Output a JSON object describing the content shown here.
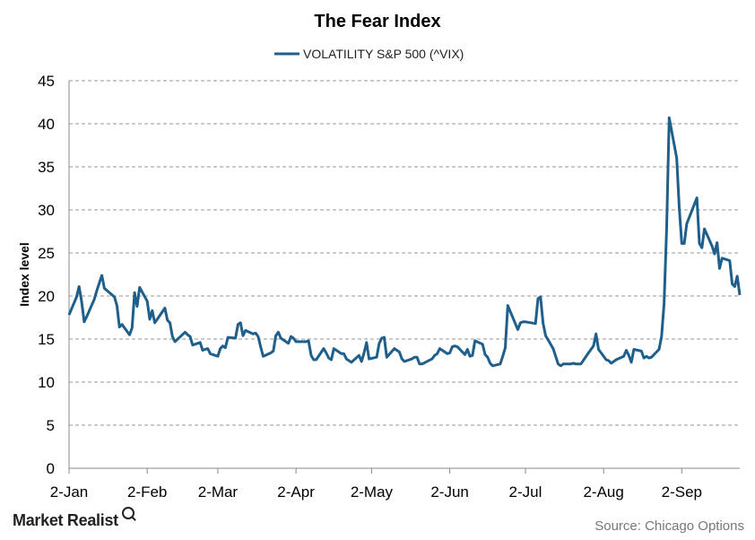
{
  "chart_data": {
    "type": "line",
    "title": "The Fear  Index",
    "ylabel": "Index level",
    "xlabel": "",
    "ylim": [
      0,
      45
    ],
    "yticks": [
      0,
      5,
      10,
      15,
      20,
      25,
      30,
      35,
      40,
      45
    ],
    "xticks": [
      "2-Jan",
      "2-Feb",
      "2-Mar",
      "2-Apr",
      "2-May",
      "2-Jun",
      "2-Jul",
      "2-Aug",
      "2-Sep"
    ],
    "grid": true,
    "legend": "top-center",
    "series": [
      {
        "name": "VOLATILITY S&P 500 (^VIX)",
        "color": "#1f5f8b",
        "x": [
          "2015-01-02",
          "2015-01-05",
          "2015-01-06",
          "2015-01-07",
          "2015-01-08",
          "2015-01-09",
          "2015-01-12",
          "2015-01-13",
          "2015-01-14",
          "2015-01-15",
          "2015-01-16",
          "2015-01-20",
          "2015-01-21",
          "2015-01-22",
          "2015-01-23",
          "2015-01-26",
          "2015-01-27",
          "2015-01-28",
          "2015-01-29",
          "2015-01-30",
          "2015-02-02",
          "2015-02-03",
          "2015-02-04",
          "2015-02-05",
          "2015-02-06",
          "2015-02-09",
          "2015-02-10",
          "2015-02-11",
          "2015-02-12",
          "2015-02-13",
          "2015-02-17",
          "2015-02-18",
          "2015-02-19",
          "2015-02-20",
          "2015-02-23",
          "2015-02-24",
          "2015-02-25",
          "2015-02-26",
          "2015-02-27",
          "2015-03-02",
          "2015-03-03",
          "2015-03-04",
          "2015-03-05",
          "2015-03-06",
          "2015-03-09",
          "2015-03-10",
          "2015-03-11",
          "2015-03-12",
          "2015-03-13",
          "2015-03-16",
          "2015-03-17",
          "2015-03-18",
          "2015-03-19",
          "2015-03-20",
          "2015-03-23",
          "2015-03-24",
          "2015-03-25",
          "2015-03-26",
          "2015-03-27",
          "2015-03-30",
          "2015-03-31",
          "2015-04-01",
          "2015-04-02",
          "2015-04-06",
          "2015-04-07",
          "2015-04-08",
          "2015-04-09",
          "2015-04-10",
          "2015-04-13",
          "2015-04-14",
          "2015-04-15",
          "2015-04-16",
          "2015-04-17",
          "2015-04-20",
          "2015-04-21",
          "2015-04-22",
          "2015-04-23",
          "2015-04-24",
          "2015-04-27",
          "2015-04-28",
          "2015-04-29",
          "2015-04-30",
          "2015-05-01",
          "2015-05-04",
          "2015-05-05",
          "2015-05-06",
          "2015-05-07",
          "2015-05-08",
          "2015-05-11",
          "2015-05-12",
          "2015-05-13",
          "2015-05-14",
          "2015-05-15",
          "2015-05-18",
          "2015-05-19",
          "2015-05-20",
          "2015-05-21",
          "2015-05-22",
          "2015-05-26",
          "2015-05-27",
          "2015-05-28",
          "2015-05-29",
          "2015-06-01",
          "2015-06-02",
          "2015-06-03",
          "2015-06-04",
          "2015-06-05",
          "2015-06-08",
          "2015-06-09",
          "2015-06-10",
          "2015-06-11",
          "2015-06-12",
          "2015-06-15",
          "2015-06-16",
          "2015-06-17",
          "2015-06-18",
          "2015-06-19",
          "2015-06-22",
          "2015-06-23",
          "2015-06-24",
          "2015-06-25",
          "2015-06-26",
          "2015-06-29",
          "2015-06-30",
          "2015-07-01",
          "2015-07-02",
          "2015-07-06",
          "2015-07-07",
          "2015-07-08",
          "2015-07-09",
          "2015-07-10",
          "2015-07-13",
          "2015-07-14",
          "2015-07-15",
          "2015-07-16",
          "2015-07-17",
          "2015-07-20",
          "2015-07-21",
          "2015-07-22",
          "2015-07-23",
          "2015-07-24",
          "2015-07-27",
          "2015-07-28",
          "2015-07-29",
          "2015-07-30",
          "2015-07-31",
          "2015-08-03",
          "2015-08-04",
          "2015-08-05",
          "2015-08-06",
          "2015-08-07",
          "2015-08-10",
          "2015-08-11",
          "2015-08-12",
          "2015-08-13",
          "2015-08-14",
          "2015-08-17",
          "2015-08-18",
          "2015-08-19",
          "2015-08-20",
          "2015-08-21",
          "2015-08-24",
          "2015-08-25",
          "2015-08-26",
          "2015-08-27",
          "2015-08-28",
          "2015-08-31",
          "2015-09-01",
          "2015-09-02",
          "2015-09-03",
          "2015-09-04",
          "2015-09-08",
          "2015-09-09",
          "2015-09-10",
          "2015-09-11",
          "2015-09-14",
          "2015-09-15",
          "2015-09-16",
          "2015-09-17",
          "2015-09-18",
          "2015-09-21",
          "2015-09-22",
          "2015-09-23",
          "2015-09-24",
          "2015-09-25"
        ],
        "values": [
          17.8,
          19.9,
          21.1,
          19.3,
          17.0,
          17.6,
          19.6,
          20.6,
          21.5,
          22.4,
          20.9,
          19.9,
          18.9,
          16.4,
          16.7,
          15.5,
          16.3,
          20.4,
          18.8,
          21.0,
          19.4,
          17.3,
          18.3,
          16.9,
          17.3,
          18.6,
          17.2,
          16.9,
          15.3,
          14.7,
          15.8,
          15.5,
          15.3,
          14.3,
          14.6,
          13.7,
          13.8,
          13.9,
          13.3,
          13.0,
          13.9,
          14.2,
          14.0,
          15.2,
          15.1,
          16.7,
          16.9,
          15.4,
          16.0,
          15.6,
          15.7,
          15.3,
          14.1,
          13.0,
          13.4,
          13.6,
          15.4,
          15.8,
          15.1,
          14.5,
          15.3,
          15.1,
          14.7,
          14.7,
          14.8,
          13.1,
          12.6,
          12.6,
          13.9,
          13.4,
          12.8,
          12.6,
          13.9,
          13.3,
          13.3,
          12.7,
          12.5,
          12.3,
          13.1,
          12.4,
          13.4,
          14.6,
          12.7,
          12.9,
          14.5,
          15.1,
          15.2,
          12.9,
          13.9,
          13.7,
          13.5,
          12.7,
          12.4,
          12.7,
          12.9,
          12.9,
          12.1,
          12.1,
          12.7,
          13.1,
          13.3,
          13.9,
          13.3,
          13.4,
          14.1,
          14.2,
          14.1,
          13.2,
          13.8,
          13.0,
          13.1,
          14.8,
          14.4,
          13.2,
          12.9,
          12.2,
          11.9,
          12.1,
          13.0,
          14.0,
          18.9,
          18.2,
          16.1,
          16.9,
          17.0,
          17.0,
          16.8,
          19.7,
          19.9,
          16.8,
          15.4,
          13.9,
          13.0,
          12.1,
          11.9,
          12.1,
          12.1,
          12.2,
          12.1,
          12.1,
          12.1,
          13.4,
          13.8,
          14.2,
          15.6,
          13.8,
          12.6,
          12.5,
          12.2,
          12.4,
          12.6,
          13.0,
          13.7,
          13.1,
          12.3,
          13.8,
          13.6,
          12.8,
          13.0,
          12.8,
          12.9,
          13.8,
          15.3,
          19.1,
          28.0,
          40.7,
          36.0,
          30.3,
          26.1,
          26.1,
          28.4,
          31.4,
          26.1,
          25.6,
          27.8,
          25.8,
          24.9,
          26.2,
          23.2,
          24.4,
          24.1,
          21.4,
          21.1,
          22.3,
          20.1
        ]
      }
    ]
  },
  "branding": {
    "logo_text": "Market Realist",
    "logo_icon": "magnifier-icon"
  },
  "source": "Source: Chicago Options"
}
